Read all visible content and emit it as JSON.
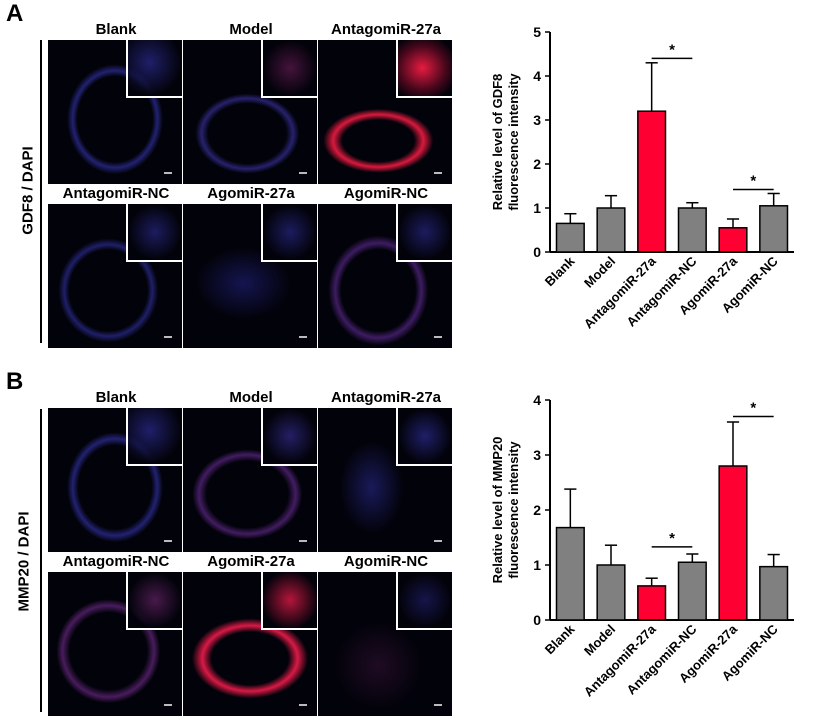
{
  "panels": [
    {
      "letter": "A",
      "stain_label": "GDF8 / DAPI",
      "images": [
        {
          "label": "Blank"
        },
        {
          "label": "Model"
        },
        {
          "label": "AntagomiR-27a"
        },
        {
          "label": "AntagomiR-NC"
        },
        {
          "label": "AgomiR-27a"
        },
        {
          "label": "AgomiR-NC"
        }
      ]
    },
    {
      "letter": "B",
      "stain_label": "MMP20 / DAPI",
      "images": [
        {
          "label": "Blank"
        },
        {
          "label": "Model"
        },
        {
          "label": "AntagomiR-27a"
        },
        {
          "label": "AntagomiR-NC"
        },
        {
          "label": "AgomiR-27a"
        },
        {
          "label": "AgomiR-NC"
        }
      ]
    }
  ],
  "colors": {
    "gray_bar": "#808080",
    "red_bar": "#ff0033"
  },
  "chart_data": [
    {
      "type": "bar",
      "ylabel": [
        "Relative level of GDF8",
        "fluorescence intensity"
      ],
      "ylim": [
        0,
        5
      ],
      "yticks": [
        "0",
        "1",
        "2",
        "3",
        "4",
        "5"
      ],
      "categories": [
        "Blank",
        "Model",
        "AntagomiR-27a",
        "AntagomiR-NC",
        "AgomiR-27a",
        "AgomiR-NC"
      ],
      "values": [
        0.65,
        1.0,
        3.2,
        1.0,
        0.55,
        1.05
      ],
      "errors": [
        0.22,
        0.28,
        1.1,
        0.12,
        0.2,
        0.28
      ],
      "highlight": [
        false,
        false,
        true,
        false,
        true,
        false
      ],
      "significance": [
        {
          "from": 2,
          "to": 3,
          "y": 4.4,
          "label": "*"
        },
        {
          "from": 4,
          "to": 5,
          "y": 1.42,
          "label": "*"
        }
      ]
    },
    {
      "type": "bar",
      "ylabel": [
        "Relative level of MMP20",
        "fluorescence intensity"
      ],
      "ylim": [
        0,
        4
      ],
      "yticks": [
        "0",
        "1",
        "2",
        "3",
        "4"
      ],
      "categories": [
        "Blank",
        "Model",
        "AntagomiR-27a",
        "AntagomiR-NC",
        "AgomiR-27a",
        "AgomiR-NC"
      ],
      "values": [
        1.68,
        1.0,
        0.62,
        1.05,
        2.8,
        0.97
      ],
      "errors": [
        0.7,
        0.36,
        0.14,
        0.15,
        0.8,
        0.22
      ],
      "highlight": [
        false,
        false,
        true,
        false,
        true,
        false
      ],
      "significance": [
        {
          "from": 2,
          "to": 3,
          "y": 1.33,
          "label": "*"
        },
        {
          "from": 4,
          "to": 5,
          "y": 3.7,
          "label": "*"
        }
      ]
    }
  ]
}
